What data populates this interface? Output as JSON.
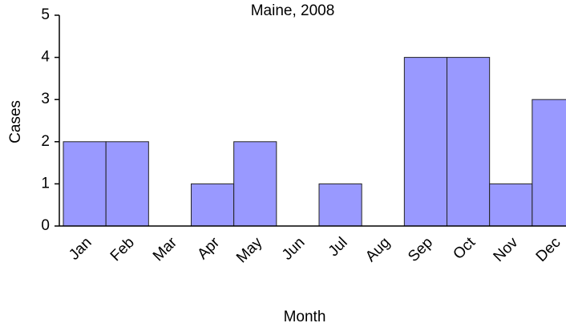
{
  "chart_data": {
    "type": "bar",
    "title": "Maine, 2008",
    "x_label": "Month",
    "y_label": "Cases",
    "categories": [
      "Jan",
      "Feb",
      "Mar",
      "Apr",
      "May",
      "Jun",
      "Jul",
      "Aug",
      "Sep",
      "Oct",
      "Nov",
      "Dec"
    ],
    "values": [
      2,
      2,
      0,
      1,
      2,
      0,
      1,
      0,
      4,
      4,
      1,
      3
    ],
    "color": "#9999ff",
    "ylim": [
      0,
      5
    ],
    "yticks": [
      0,
      1,
      2,
      3,
      4,
      5
    ],
    "grid": false
  }
}
